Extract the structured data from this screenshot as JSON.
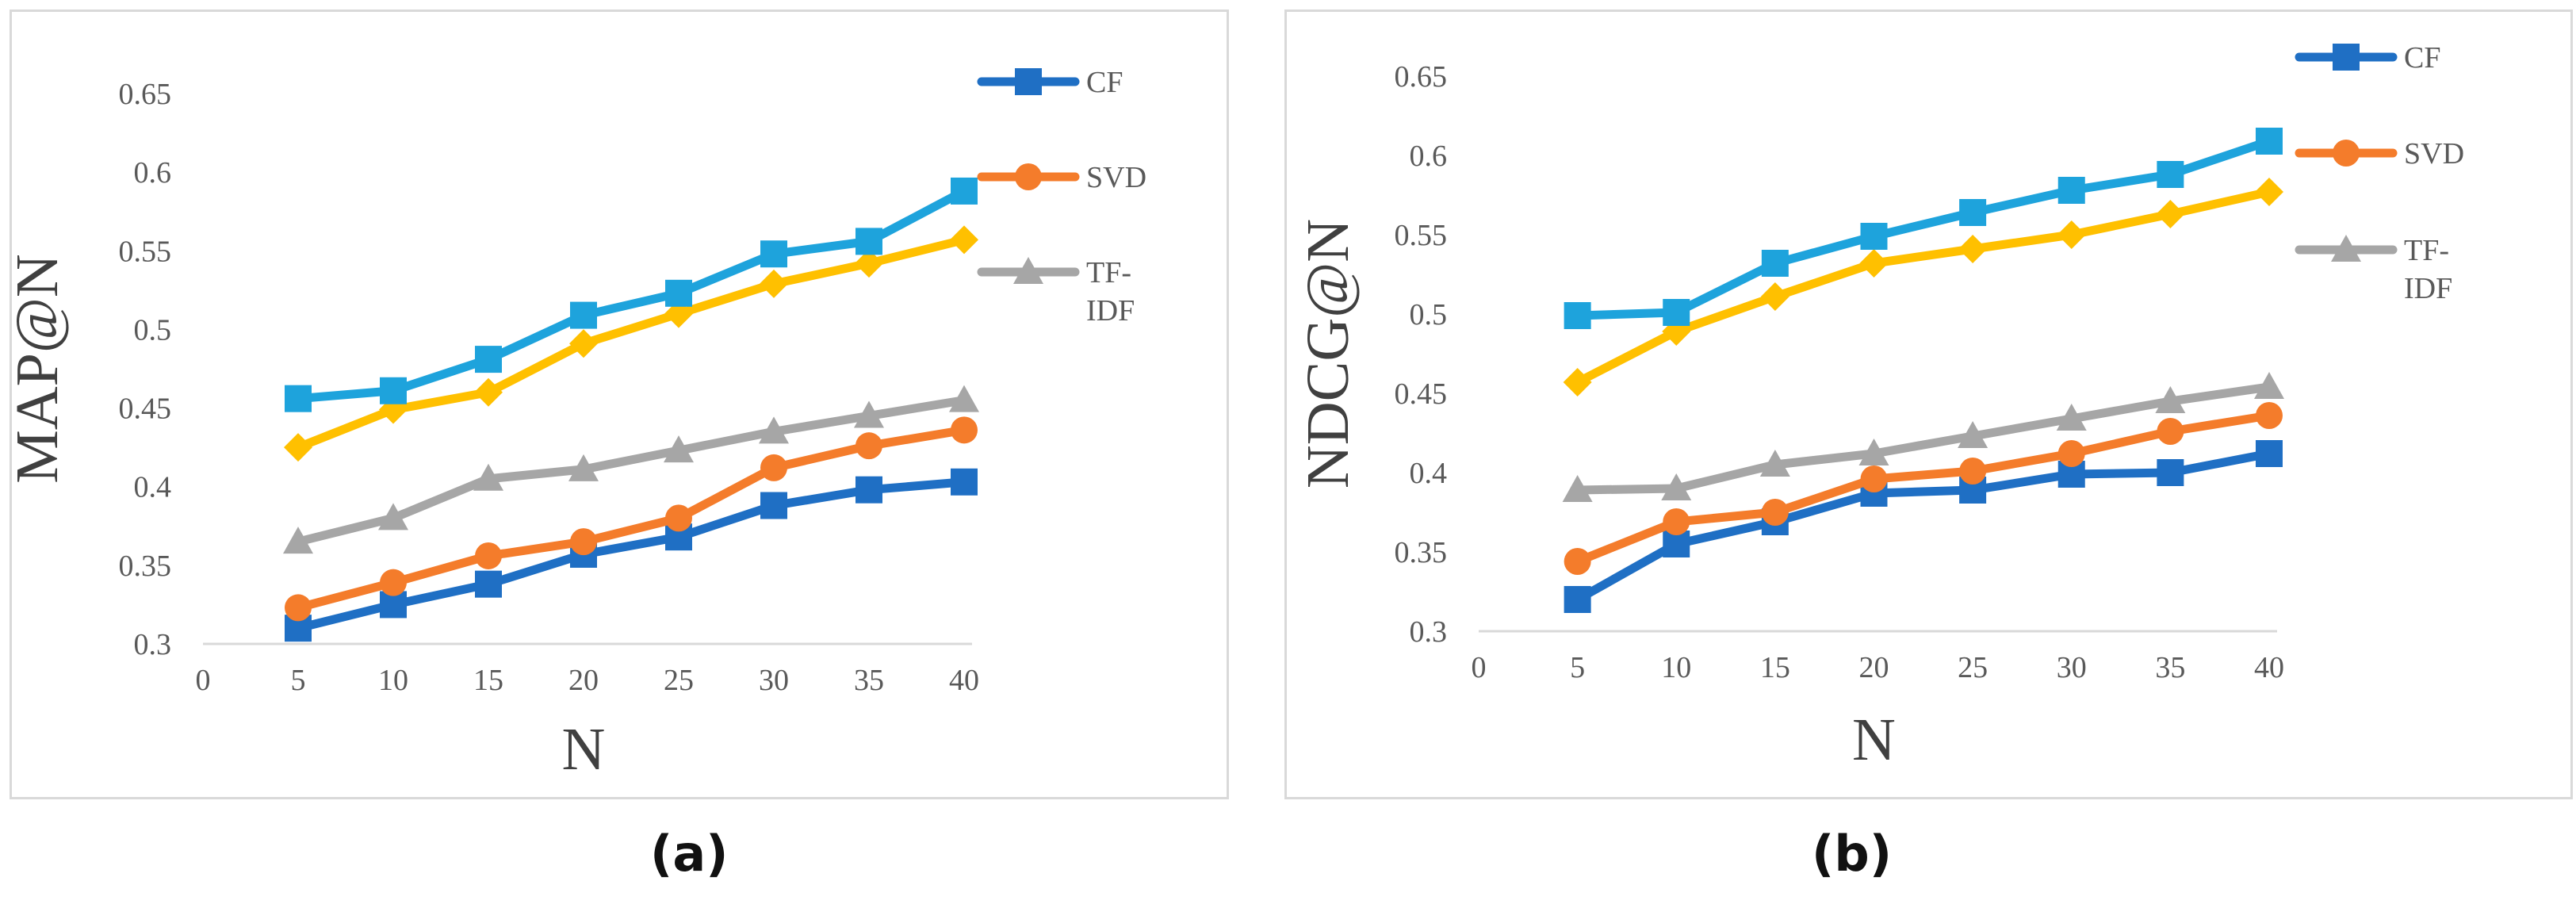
{
  "chart_data": [
    {
      "type": "line",
      "panel": "a",
      "ylabel": "MAP@N",
      "xlabel": "N",
      "xlim": [
        0,
        40
      ],
      "ylim": [
        0.3,
        0.65
      ],
      "x_ticks": [
        "0",
        "5",
        "10",
        "15",
        "20",
        "25",
        "30",
        "35",
        "40"
      ],
      "y_ticks": [
        "0.3",
        "0.35",
        "0.4",
        "0.45",
        "0.5",
        "0.55",
        "0.6",
        "0.65"
      ],
      "x": [
        5,
        10,
        15,
        20,
        25,
        30,
        35,
        40
      ],
      "series": [
        {
          "name": "CF",
          "color": "#1f6fc4",
          "marker": "square",
          "in_legend": true,
          "values": [
            0.31,
            0.325,
            0.338,
            0.357,
            0.368,
            0.388,
            0.398,
            0.403
          ]
        },
        {
          "name": "SVD",
          "color": "#f47c2b",
          "marker": "circle",
          "in_legend": true,
          "values": [
            0.323,
            0.339,
            0.356,
            0.365,
            0.38,
            0.412,
            0.426,
            0.436
          ]
        },
        {
          "name": "TF-IDF",
          "color": "#a6a6a6",
          "marker": "triangle",
          "in_legend": true,
          "values": [
            0.365,
            0.38,
            0.405,
            0.411,
            0.423,
            0.435,
            0.445,
            0.455
          ]
        },
        {
          "name": "",
          "color": "#ffc000",
          "marker": "diamond",
          "in_legend": false,
          "values": [
            0.425,
            0.449,
            0.46,
            0.491,
            0.51,
            0.529,
            0.542,
            0.557
          ]
        },
        {
          "name": "",
          "color": "#1ea3dc",
          "marker": "square",
          "in_legend": false,
          "values": [
            0.456,
            0.461,
            0.481,
            0.509,
            0.523,
            0.548,
            0.556,
            0.588
          ]
        }
      ],
      "legend": [
        {
          "lines": [
            "CF"
          ],
          "color": "#1f6fc4",
          "marker": "square"
        },
        {
          "lines": [
            "SVD"
          ],
          "color": "#f47c2b",
          "marker": "circle"
        },
        {
          "lines": [
            "TF-",
            "IDF"
          ],
          "color": "#a6a6a6",
          "marker": "triangle"
        }
      ],
      "caption": "(a)"
    },
    {
      "type": "line",
      "panel": "b",
      "ylabel": "NDCG@N",
      "xlabel": "N",
      "xlim": [
        0,
        40
      ],
      "ylim": [
        0.3,
        0.65
      ],
      "x_ticks": [
        "0",
        "5",
        "10",
        "15",
        "20",
        "25",
        "30",
        "35",
        "40"
      ],
      "y_ticks": [
        "0.3",
        "0.35",
        "0.4",
        "0.45",
        "0.5",
        "0.55",
        "0.6",
        "0.65"
      ],
      "x": [
        5,
        10,
        15,
        20,
        25,
        30,
        35,
        40
      ],
      "series": [
        {
          "name": "CF",
          "color": "#1f6fc4",
          "marker": "square",
          "in_legend": true,
          "values": [
            0.32,
            0.355,
            0.369,
            0.387,
            0.389,
            0.399,
            0.4,
            0.412
          ]
        },
        {
          "name": "SVD",
          "color": "#f47c2b",
          "marker": "circle",
          "in_legend": true,
          "values": [
            0.344,
            0.369,
            0.375,
            0.396,
            0.401,
            0.412,
            0.426,
            0.436
          ]
        },
        {
          "name": "TF-IDF",
          "color": "#a6a6a6",
          "marker": "triangle",
          "in_legend": true,
          "values": [
            0.389,
            0.39,
            0.405,
            0.412,
            0.423,
            0.434,
            0.445,
            0.454
          ]
        },
        {
          "name": "",
          "color": "#ffc000",
          "marker": "diamond",
          "in_legend": false,
          "values": [
            0.457,
            0.489,
            0.511,
            0.532,
            0.541,
            0.55,
            0.563,
            0.577
          ]
        },
        {
          "name": "",
          "color": "#1ea3dc",
          "marker": "square",
          "in_legend": false,
          "values": [
            0.499,
            0.501,
            0.532,
            0.549,
            0.564,
            0.578,
            0.588,
            0.609
          ]
        }
      ],
      "legend": [
        {
          "lines": [
            "CF"
          ],
          "color": "#1f6fc4",
          "marker": "square"
        },
        {
          "lines": [
            "SVD"
          ],
          "color": "#f47c2b",
          "marker": "circle"
        },
        {
          "lines": [
            "TF-",
            "IDF"
          ],
          "color": "#a6a6a6",
          "marker": "triangle"
        }
      ],
      "caption": "(b)"
    }
  ]
}
